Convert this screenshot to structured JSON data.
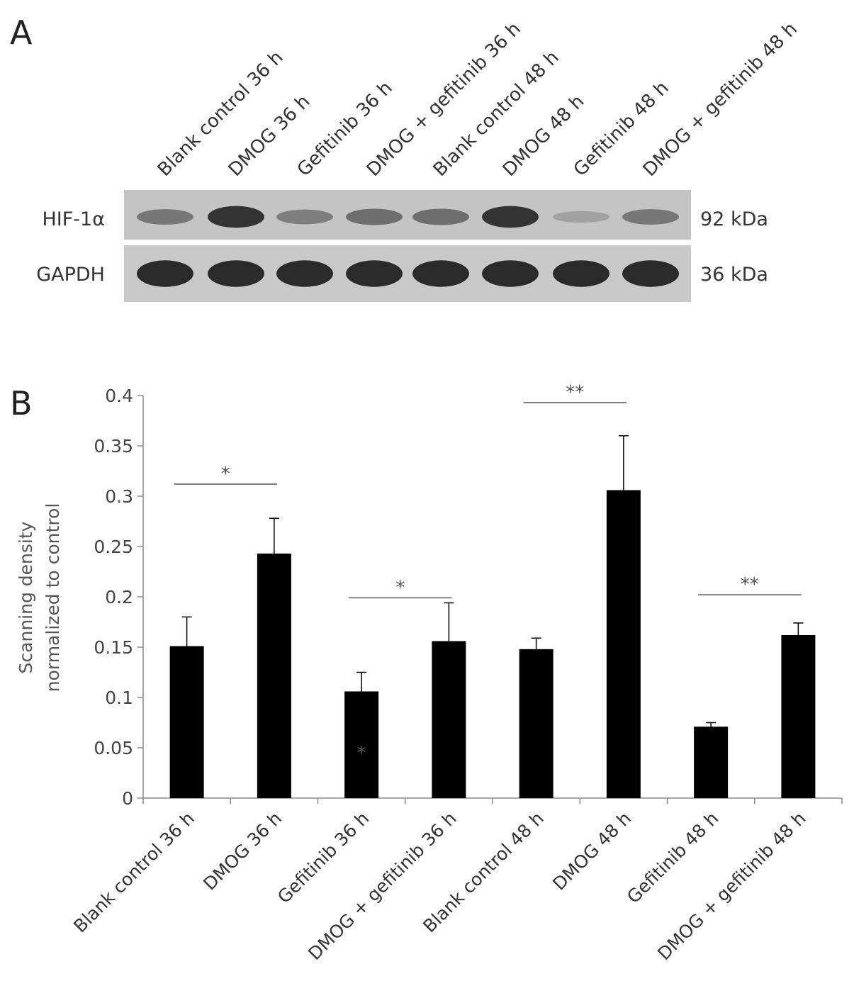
{
  "panel_a": {
    "letter": "A",
    "lanes": [
      "Blank control 36 h",
      "DMOG 36 h",
      "Gefitinib 36 h",
      "DMOG + gefitinib 36 h",
      "Blank control 48 h",
      "DMOG 48 h",
      "Gefitinib 48 h",
      "DMOG + gefitinib 48 h"
    ],
    "rows": [
      {
        "name": "HIF-1α",
        "size": "92 kDa",
        "band_intensity": [
          0.45,
          0.85,
          0.4,
          0.5,
          0.5,
          0.85,
          0.2,
          0.45
        ]
      },
      {
        "name": "GAPDH",
        "size": "36 kDa",
        "band_intensity": [
          0.9,
          0.9,
          0.9,
          0.9,
          0.9,
          0.9,
          0.9,
          0.9
        ]
      }
    ]
  },
  "panel_b": {
    "letter": "B"
  },
  "chart_data": {
    "type": "bar",
    "categories": [
      "Blank control 36 h",
      "DMOG 36 h",
      "Gefitinib 36 h",
      "DMOG + gefitinib 36 h",
      "Blank control 48 h",
      "DMOG 48 h",
      "Gefitinib 48 h",
      "DMOG + gefitinib 48 h"
    ],
    "values": [
      0.151,
      0.243,
      0.106,
      0.156,
      0.148,
      0.306,
      0.071,
      0.162
    ],
    "errors": [
      0.029,
      0.035,
      0.019,
      0.038,
      0.011,
      0.054,
      0.004,
      0.012
    ],
    "ylabel_lines": [
      "Scanning density",
      "normalized to control"
    ],
    "xlabel": "",
    "ylim": [
      0,
      0.4
    ],
    "yticks": [
      "0",
      "0.05",
      "0.1",
      "0.15",
      "0.2",
      "0.25",
      "0.3",
      "0.35",
      "0.4"
    ],
    "bar_color": "#000000",
    "significance": [
      {
        "from": 0,
        "to": 1,
        "label": "*",
        "y": 0.312
      },
      {
        "from": 2,
        "to": 3,
        "label": "*",
        "y": 0.199
      },
      {
        "from": 4,
        "to": 5,
        "label": "**",
        "y": 0.393
      },
      {
        "from": 6,
        "to": 7,
        "label": "**",
        "y": 0.202
      }
    ],
    "bar_annotations": [
      {
        "index": 2,
        "label": "*",
        "y": 0.05,
        "color": "#888888"
      }
    ],
    "grid": false,
    "legend": "none"
  }
}
